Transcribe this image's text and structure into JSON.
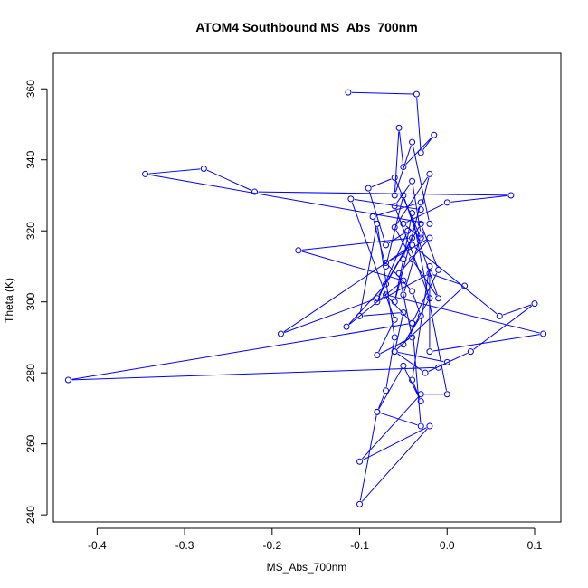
{
  "chart_data": {
    "type": "line",
    "title": "ATOM4 Southbound MS_Abs_700nm",
    "xlabel": "MS_Abs_700nm",
    "ylabel": "Theta (K)",
    "xlim": [
      -0.45,
      0.13
    ],
    "ylim": [
      238,
      370
    ],
    "xticks": [
      -0.4,
      -0.3,
      -0.2,
      -0.1,
      0.0,
      0.1
    ],
    "xtick_labels": [
      "-0.4",
      "-0.3",
      "-0.2",
      "-0.1",
      "0.0",
      "0.1"
    ],
    "yticks": [
      240,
      260,
      280,
      300,
      320,
      340,
      360
    ],
    "ytick_labels": [
      "240",
      "260",
      "280",
      "300",
      "320",
      "340",
      "360"
    ],
    "grid": false,
    "series": [
      {
        "color": "#0000ff",
        "marker": "open-circle",
        "points": [
          [
            -0.113,
            359
          ],
          [
            -0.035,
            358.5
          ],
          [
            -0.03,
            342
          ],
          [
            -0.015,
            347
          ],
          [
            -0.05,
            338
          ],
          [
            -0.055,
            349
          ],
          [
            -0.06,
            330
          ],
          [
            -0.04,
            345
          ],
          [
            -0.02,
            322
          ],
          [
            -0.345,
            336
          ],
          [
            -0.278,
            337.5
          ],
          [
            -0.22,
            331
          ],
          [
            0.073,
            330
          ],
          [
            0.0,
            328
          ],
          [
            -0.05,
            322
          ],
          [
            -0.03,
            318
          ],
          [
            -0.06,
            335
          ],
          [
            -0.09,
            332
          ],
          [
            -0.07,
            316
          ],
          [
            -0.045,
            320
          ],
          [
            -0.08,
            300
          ],
          [
            -0.02,
            308
          ],
          [
            0.02,
            304.5
          ],
          [
            -0.06,
            286
          ],
          [
            -0.025,
            280
          ],
          [
            0.027,
            286
          ],
          [
            0.1,
            299.5
          ],
          [
            0.06,
            296
          ],
          [
            -0.04,
            316
          ],
          [
            -0.19,
            291
          ],
          [
            -0.08,
            301
          ],
          [
            -0.04,
            318
          ],
          [
            -0.17,
            314.5
          ],
          [
            -0.05,
            306
          ],
          [
            -0.115,
            293
          ],
          [
            -0.07,
            305
          ],
          [
            -0.03,
            322
          ],
          [
            -0.01,
            309
          ],
          [
            -0.04,
            294
          ],
          [
            -0.433,
            278
          ],
          [
            -0.01,
            281.5
          ],
          [
            0.0,
            283
          ],
          [
            -0.06,
            286
          ],
          [
            -0.05,
            297
          ],
          [
            -0.1,
            296
          ],
          [
            -0.08,
            322
          ],
          [
            -0.06,
            290
          ],
          [
            -0.07,
            275
          ],
          [
            -0.08,
            269
          ],
          [
            -0.05,
            282
          ],
          [
            -0.03,
            272
          ],
          [
            -0.04,
            278
          ],
          [
            -0.02,
            310
          ],
          [
            -0.02,
            286
          ],
          [
            0.11,
            291
          ],
          [
            -0.07,
            302
          ],
          [
            -0.04,
            294
          ],
          [
            -0.03,
            265
          ],
          [
            -0.08,
            269
          ],
          [
            -0.1,
            243
          ],
          [
            -0.02,
            265
          ],
          [
            -0.1,
            255
          ],
          [
            -0.03,
            274
          ],
          [
            0.0,
            274
          ],
          [
            -0.04,
            325
          ],
          [
            -0.05,
            312
          ],
          [
            -0.06,
            300
          ],
          [
            -0.03,
            328
          ],
          [
            -0.085,
            324
          ],
          [
            -0.07,
            310
          ],
          [
            -0.05,
            330
          ],
          [
            -0.01,
            301
          ],
          [
            -0.04,
            312
          ],
          [
            -0.06,
            321
          ],
          [
            -0.02,
            336
          ],
          [
            -0.03,
            326
          ],
          [
            -0.11,
            329
          ],
          [
            -0.06,
            295
          ],
          [
            -0.08,
            285
          ],
          [
            -0.04,
            290
          ],
          [
            -0.055,
            308
          ],
          [
            -0.02,
            318
          ],
          [
            -0.07,
            311
          ],
          [
            -0.04,
            303
          ],
          [
            -0.03,
            296
          ],
          [
            -0.05,
            288
          ],
          [
            -0.02,
            301
          ],
          [
            -0.06,
            327
          ],
          [
            -0.04,
            334
          ],
          [
            -0.03,
            319
          ],
          [
            -0.05,
            302
          ]
        ]
      }
    ]
  }
}
